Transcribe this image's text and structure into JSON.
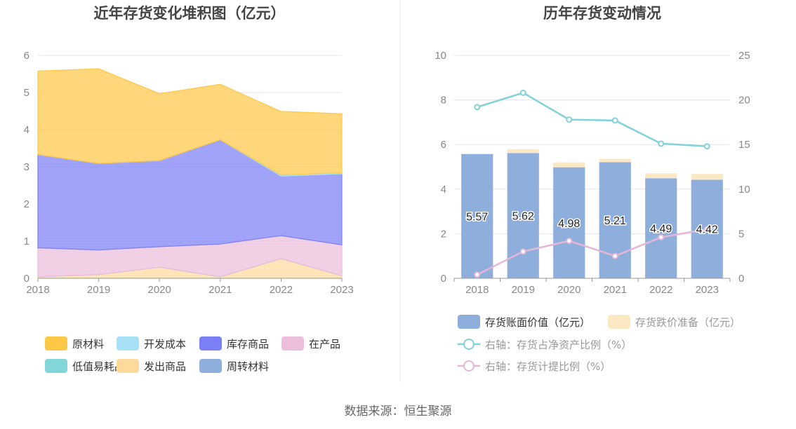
{
  "source_label": "数据来源：恒生聚源",
  "colors": {
    "raw_material": "#fdc846",
    "dev_cost": "#a8e0f8",
    "finished_goods": "#7b7ff5",
    "wip": "#ecbedc",
    "low_value": "#80d6d8",
    "shipped_goods": "#fdd99a",
    "turnover_material": "#8eafdc",
    "book_value": "#8eafdc",
    "impairment": "#fde8c4",
    "ratio_line": "#82d2d9",
    "provision_line": "#e5b6d8",
    "grid": "#e3e6ef",
    "axis": "#999999"
  },
  "chart_data": [
    {
      "type": "area",
      "stacked": true,
      "title": "近年存货变化堆积图（亿元）",
      "x": [
        "2018",
        "2019",
        "2020",
        "2021",
        "2022",
        "2023"
      ],
      "ylim": [
        0,
        6
      ],
      "yticks": [
        "0",
        "1",
        "2",
        "3",
        "4",
        "5",
        "6"
      ],
      "legend_position": "bottom",
      "series": [
        {
          "key": "shipped_goods",
          "name": "发出商品",
          "values": [
            0.04,
            0.1,
            0.3,
            0.04,
            0.53,
            0.07
          ]
        },
        {
          "key": "turnover_material",
          "name": "周转材料",
          "values": [
            0.0,
            0.0,
            0.0,
            0.0,
            0.0,
            0.0
          ]
        },
        {
          "key": "low_value",
          "name": "低值易耗品",
          "values": [
            0.0,
            0.0,
            0.0,
            0.0,
            0.0,
            0.0
          ]
        },
        {
          "key": "wip",
          "name": "在产品",
          "values": [
            0.78,
            0.66,
            0.55,
            0.88,
            0.62,
            0.83
          ]
        },
        {
          "key": "finished_goods",
          "name": "库存商品",
          "values": [
            2.51,
            2.33,
            2.32,
            2.81,
            1.6,
            1.91
          ]
        },
        {
          "key": "dev_cost",
          "name": "开发成本",
          "values": [
            0.0,
            0.0,
            0.0,
            0.0,
            0.03,
            0.03
          ]
        },
        {
          "key": "raw_material",
          "name": "原材料",
          "values": [
            2.25,
            2.55,
            1.8,
            1.49,
            1.71,
            1.59
          ]
        }
      ],
      "legend_rows": [
        [
          "raw_material",
          "dev_cost",
          "finished_goods",
          "wip"
        ],
        [
          "low_value",
          "shipped_goods",
          "turnover_material"
        ]
      ]
    },
    {
      "type": "bar",
      "stacked": true,
      "title": "历年存货变动情况",
      "categories": [
        "2018",
        "2019",
        "2020",
        "2021",
        "2022",
        "2023"
      ],
      "ylim": [
        0,
        10
      ],
      "yticks": [
        "0",
        "2",
        "4",
        "6",
        "8",
        "10"
      ],
      "y2lim": [
        0,
        25
      ],
      "y2ticks": [
        "0",
        "5",
        "10",
        "15",
        "20",
        "25"
      ],
      "legend_position": "bottom",
      "series": [
        {
          "key": "book_value",
          "name": "存货账面价值（亿元）",
          "axis": "left",
          "kind": "bar",
          "values": [
            5.57,
            5.62,
            4.98,
            5.21,
            4.49,
            4.42
          ],
          "labels": [
            "5.57",
            "5.62",
            "4.98",
            "5.21",
            "4.49",
            "4.42"
          ]
        },
        {
          "key": "impairment",
          "name": "存货跌价准备（亿元）",
          "axis": "left",
          "kind": "bar",
          "values": [
            0.03,
            0.17,
            0.22,
            0.15,
            0.22,
            0.26
          ]
        },
        {
          "key": "ratio_line",
          "name": "右轴：存货占净资产比例（%）",
          "axis": "right",
          "kind": "line",
          "values": [
            19.2,
            20.8,
            17.8,
            17.7,
            15.1,
            14.8
          ]
        },
        {
          "key": "provision_line",
          "name": "右轴：存货计提比例（%）",
          "axis": "right",
          "kind": "line",
          "values": [
            0.4,
            3.0,
            4.2,
            2.5,
            4.6,
            5.5
          ]
        }
      ]
    }
  ]
}
